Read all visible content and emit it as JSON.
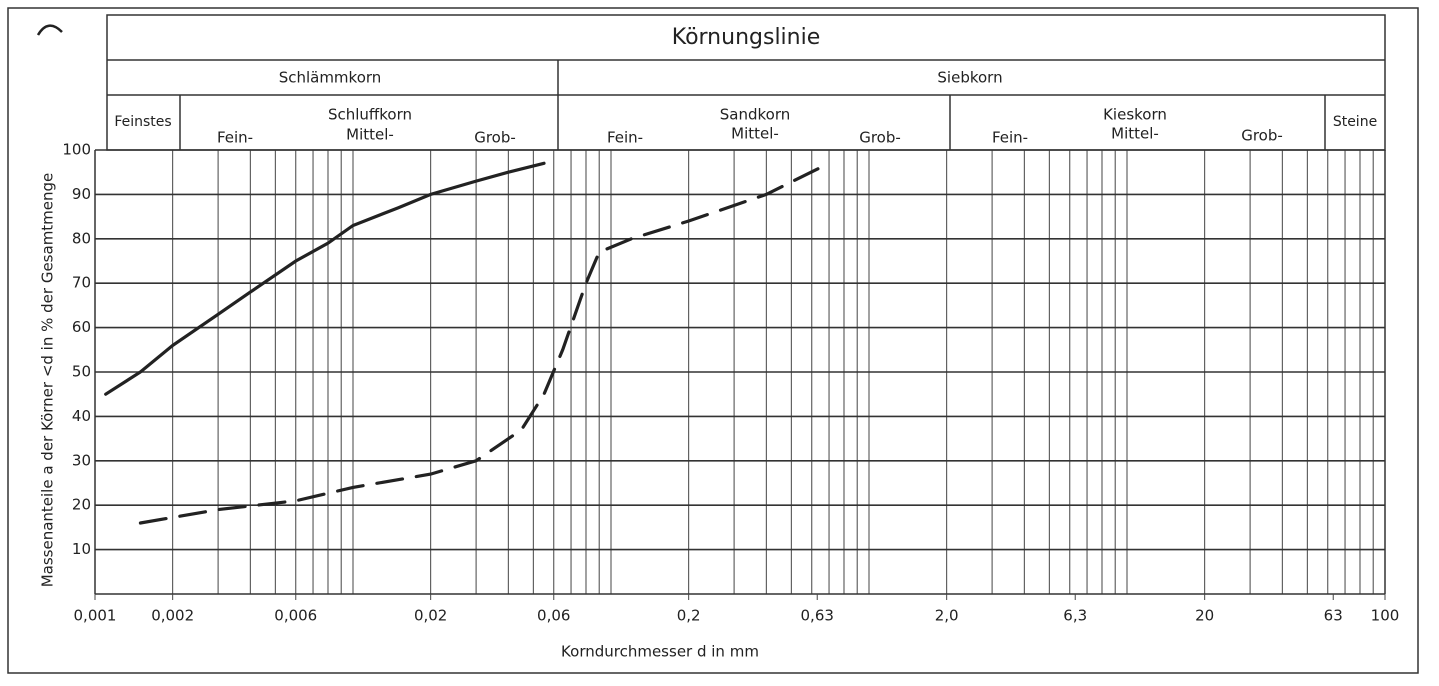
{
  "header": {
    "title": "Körnungslinie",
    "groups": [
      "Schlämmkorn",
      "Siebkorn"
    ],
    "fractions": [
      {
        "name": "Feinstes"
      },
      {
        "name": "Schluffkorn",
        "parts": [
          "Fein-",
          "Mittel-",
          "Grob-"
        ]
      },
      {
        "name": "Sandkorn",
        "parts": [
          "Fein-",
          "Mittel-",
          "Grob-"
        ]
      },
      {
        "name": "Kieskorn",
        "parts": [
          "Fein-",
          "Mittel-",
          "Grob-"
        ]
      },
      {
        "name": "Steine"
      }
    ]
  },
  "chart_data": {
    "type": "line",
    "x_label": "Korndurchmesser d in mm",
    "y_label": "Massenanteile a der Körner <d in % der Gesamtmenge",
    "x_scale": "log",
    "grid": true,
    "xlim": [
      0.001,
      100
    ],
    "ylim": [
      0,
      100
    ],
    "xticks": [
      {
        "value": 0.001,
        "label": "0,001"
      },
      {
        "value": 0.002,
        "label": "0,002"
      },
      {
        "value": 0.006,
        "label": "0,006"
      },
      {
        "value": 0.02,
        "label": "0,02"
      },
      {
        "value": 0.06,
        "label": "0,06"
      },
      {
        "value": 0.2,
        "label": "0,2"
      },
      {
        "value": 0.63,
        "label": "0,63"
      },
      {
        "value": 2,
        "label": "2,0"
      },
      {
        "value": 6.3,
        "label": "6,3"
      },
      20,
      63,
      100
    ],
    "yticks": [
      10,
      20,
      30,
      40,
      50,
      60,
      70,
      80,
      90,
      100
    ],
    "series": [
      {
        "color": "#222",
        "line_style": "solid",
        "x": [
          0.0011,
          0.0015,
          0.002,
          0.003,
          0.004,
          0.006,
          0.008,
          0.01,
          0.015,
          0.02,
          0.03,
          0.04,
          0.055
        ],
        "values": [
          45,
          50,
          56,
          63,
          68,
          75,
          79,
          83,
          87,
          90,
          93,
          95,
          97
        ]
      },
      {
        "color": "#222",
        "line_style": "dashed",
        "x": [
          0.0015,
          0.003,
          0.006,
          0.01,
          0.02,
          0.03,
          0.045,
          0.055,
          0.065,
          0.08,
          0.09,
          0.12,
          0.2,
          0.4,
          0.7
        ],
        "values": [
          16,
          19,
          21,
          24,
          27,
          30,
          37,
          45,
          55,
          70,
          77,
          80,
          84,
          90,
          97
        ]
      }
    ]
  }
}
